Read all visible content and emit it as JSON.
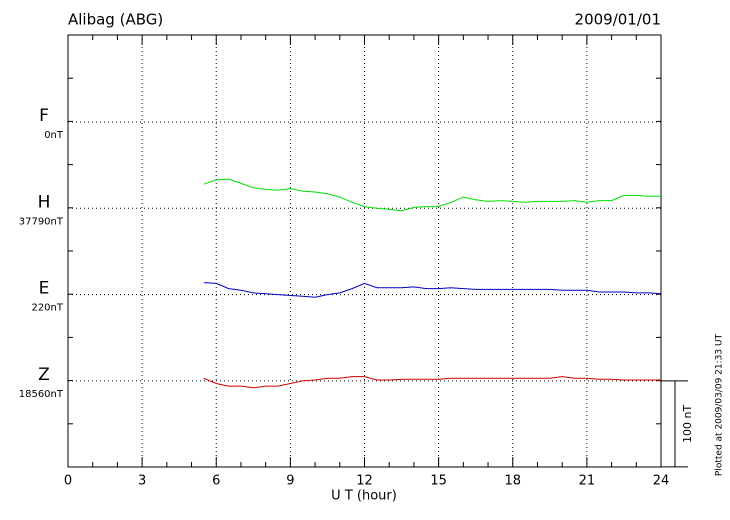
{
  "chart_data": {
    "type": "line",
    "title": "Alibag (ABG)",
    "date": "2009/01/01",
    "x_label": "U T (hour)",
    "plotted_note": "Plotted at 2009/03/09 21:33 UT",
    "scale_bar": {
      "value": 100,
      "label": "100 nT"
    },
    "xlim": [
      0,
      24
    ],
    "xticks": [
      0,
      3,
      6,
      9,
      12,
      15,
      18,
      21,
      24
    ],
    "grid": true,
    "x": [
      5.5,
      6,
      6.5,
      7,
      7.5,
      8,
      8.5,
      9,
      9.5,
      10,
      10.5,
      11,
      11.5,
      12,
      12.5,
      13,
      13.5,
      14,
      14.5,
      15,
      15.5,
      16,
      16.5,
      17,
      17.5,
      18,
      18.5,
      19,
      19.5,
      20,
      20.5,
      21,
      21.5,
      22,
      22.5,
      23,
      23.5,
      24
    ],
    "series": [
      {
        "name": "F",
        "color": "#f0a000",
        "baseline": {
          "value": 0,
          "label": "0nT"
        },
        "values": [
          null,
          null,
          null,
          null,
          null,
          null,
          null,
          null,
          null,
          null,
          null,
          null,
          null,
          null,
          null,
          null,
          null,
          null,
          null,
          null,
          null,
          null,
          null,
          null,
          null,
          null,
          null,
          null,
          null,
          null,
          null,
          null,
          null,
          null,
          null,
          null,
          null,
          null
        ]
      },
      {
        "name": "H",
        "color": "#00e000",
        "baseline": {
          "value": 37790,
          "label": "37790nT"
        },
        "values": [
          37818,
          37823,
          37824,
          37819,
          37814,
          37812,
          37811,
          37813,
          37810,
          37809,
          37807,
          37803,
          37797,
          37792,
          37790,
          37789,
          37787,
          37791,
          37792,
          37792,
          37797,
          37803,
          37800,
          37798,
          37799,
          37798,
          37797,
          37798,
          37798,
          37798,
          37799,
          37797,
          37799,
          37799,
          37805,
          37805,
          37804,
          37804
        ]
      },
      {
        "name": "E",
        "color": "#0000c0",
        "baseline": {
          "value": 220,
          "label": "220nT"
        },
        "values": [
          234,
          233,
          227,
          225,
          222,
          221,
          220,
          219,
          218,
          217,
          220,
          222,
          227,
          233,
          228,
          228,
          228,
          229,
          227,
          227,
          228,
          227,
          226,
          226,
          226,
          226,
          226,
          226,
          226,
          225,
          225,
          225,
          223,
          223,
          223,
          222,
          222,
          221
        ]
      },
      {
        "name": "Z",
        "color": "#d00000",
        "baseline": {
          "value": 18560,
          "label": "18560nT"
        },
        "values": [
          18563,
          18557,
          18554,
          18554,
          18552,
          18554,
          18554,
          18557,
          18560,
          18561,
          18563,
          18563,
          18565,
          18565,
          18561,
          18561,
          18562,
          18562,
          18562,
          18562,
          18563,
          18563,
          18563,
          18563,
          18563,
          18563,
          18563,
          18563,
          18563,
          18565,
          18563,
          18563,
          18562,
          18562,
          18561,
          18561,
          18561,
          18561
        ]
      }
    ]
  }
}
